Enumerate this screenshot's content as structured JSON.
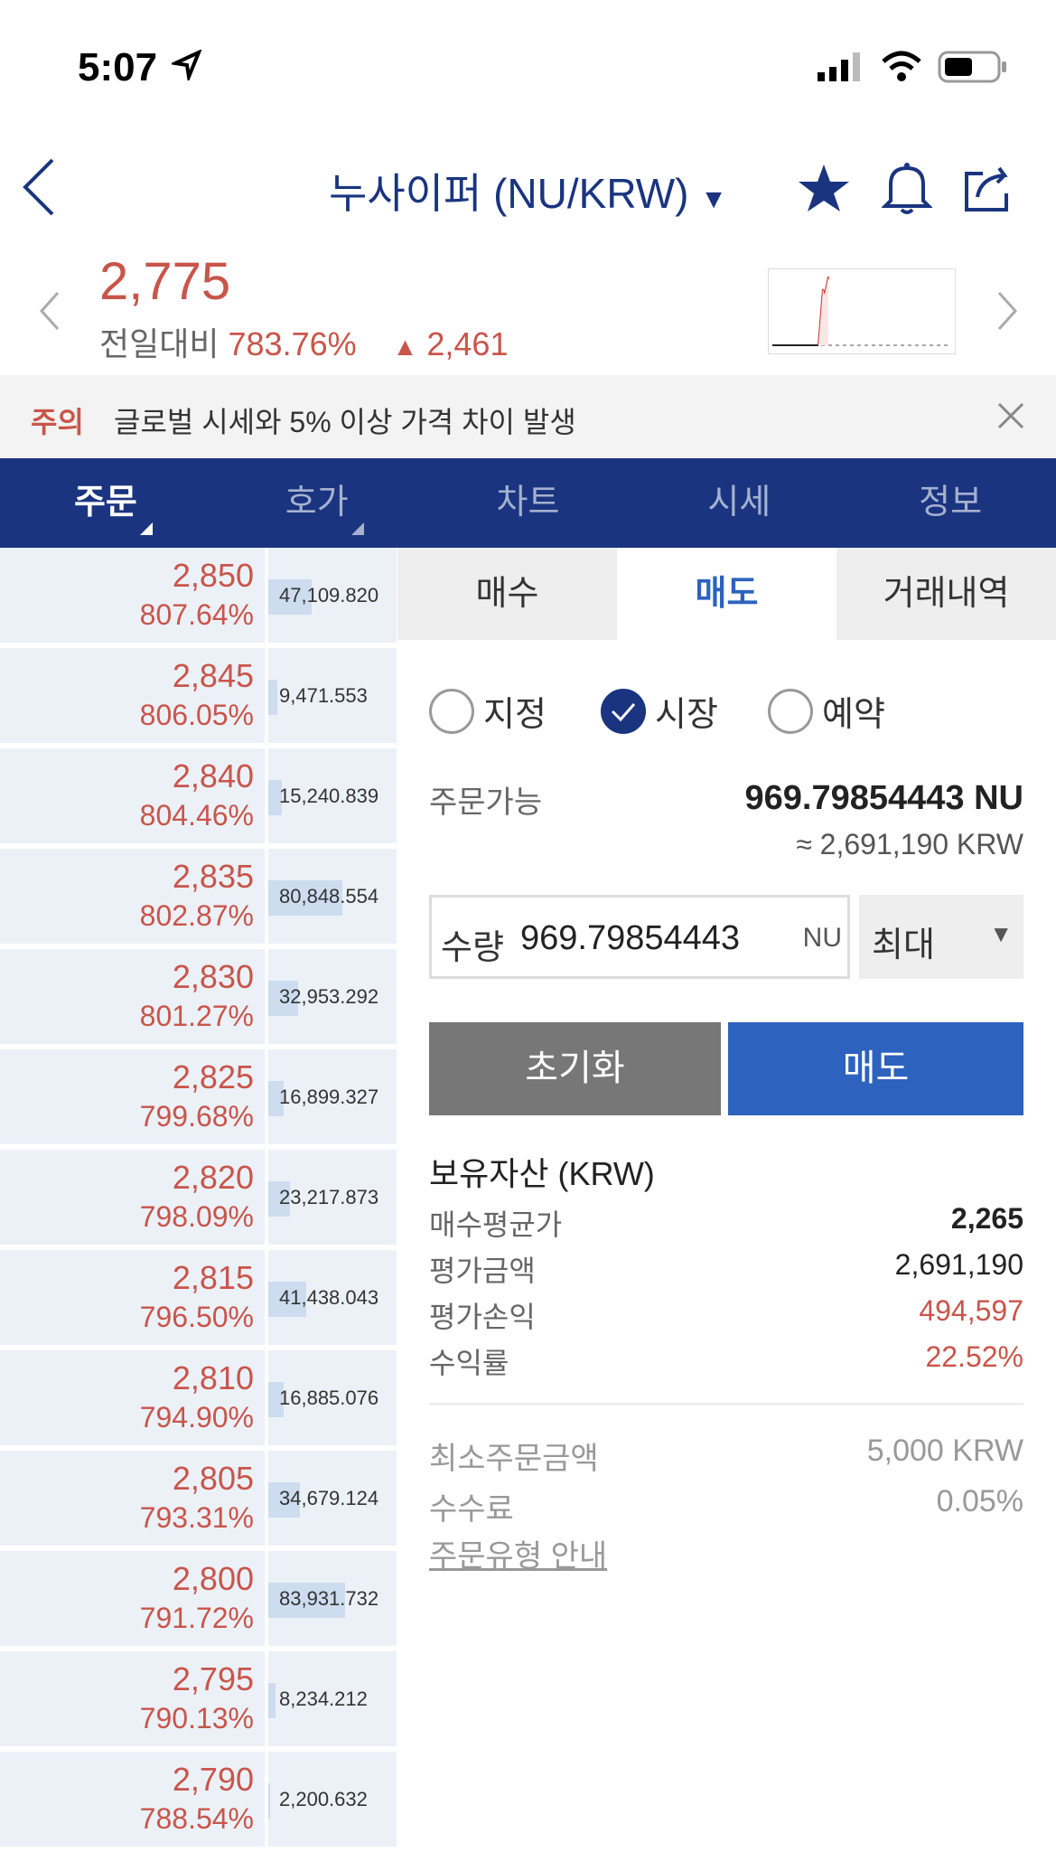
{
  "status_bar": {
    "time": "5:07"
  },
  "header": {
    "title": "누사이퍼 (NU/KRW)"
  },
  "ticker": {
    "price": "2,775",
    "change_label": "전일대비",
    "change_pct": "783.76%",
    "change_abs": "2,461",
    "direction": "up",
    "color_up": "#c9554a"
  },
  "warning": {
    "label": "주의",
    "message": "글로벌 시세와 5% 이상 가격 차이 발생"
  },
  "tabs": [
    {
      "label": "주문",
      "active": true
    },
    {
      "label": "호가"
    },
    {
      "label": "차트"
    },
    {
      "label": "시세"
    },
    {
      "label": "정보"
    }
  ],
  "orderbook": [
    {
      "price": "2,850",
      "pct": "807.64%",
      "volume": "47,109.820"
    },
    {
      "price": "2,845",
      "pct": "806.05%",
      "volume": "9,471.553"
    },
    {
      "price": "2,840",
      "pct": "804.46%",
      "volume": "15,240.839"
    },
    {
      "price": "2,835",
      "pct": "802.87%",
      "volume": "80,848.554"
    },
    {
      "price": "2,830",
      "pct": "801.27%",
      "volume": "32,953.292"
    },
    {
      "price": "2,825",
      "pct": "799.68%",
      "volume": "16,899.327"
    },
    {
      "price": "2,820",
      "pct": "798.09%",
      "volume": "23,217.873"
    },
    {
      "price": "2,815",
      "pct": "796.50%",
      "volume": "41,438.043"
    },
    {
      "price": "2,810",
      "pct": "794.90%",
      "volume": "16,885.076"
    },
    {
      "price": "2,805",
      "pct": "793.31%",
      "volume": "34,679.124"
    },
    {
      "price": "2,800",
      "pct": "791.72%",
      "volume": "83,931.732"
    },
    {
      "price": "2,795",
      "pct": "790.13%",
      "volume": "8,234.212"
    },
    {
      "price": "2,790",
      "pct": "788.54%",
      "volume": "2,200.632"
    }
  ],
  "order": {
    "tabs": [
      {
        "label": "매수"
      },
      {
        "label": "매도",
        "active": true
      },
      {
        "label": "거래내역"
      }
    ],
    "types": [
      {
        "label": "지정"
      },
      {
        "label": "시장",
        "checked": true
      },
      {
        "label": "예약"
      }
    ],
    "available_label": "주문가능",
    "available_value": "969.79854443 NU",
    "available_krw": "≈ 2,691,190 KRW",
    "qty_label": "수량",
    "qty_value": "969.79854443",
    "qty_unit": "NU",
    "max_label": "최대",
    "reset_label": "초기화",
    "sell_label": "매도",
    "sell_color": "#2d62be",
    "holdings_title": "보유자산 (KRW)",
    "holdings": [
      {
        "label": "매수평균가",
        "value": "2,265"
      },
      {
        "label": "평가금액",
        "value": "2,691,190"
      },
      {
        "label": "평가손익",
        "value": "494,597"
      },
      {
        "label": "수익률",
        "value": "22.52%"
      }
    ],
    "min_order_label": "최소주문금액",
    "min_order_value": "5,000 KRW",
    "fee_label": "수수료",
    "fee_value": "0.05%",
    "guide_link": "주문유형 안내"
  }
}
